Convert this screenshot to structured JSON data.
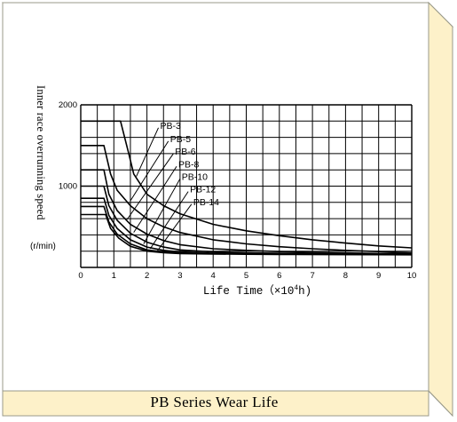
{
  "caption": "PB Series Wear Life",
  "colors": {
    "frame_side": "#fdf1c9",
    "frame_border": "#9a9a8a",
    "caption_bg": "#fdf1c9",
    "grid": "#000000",
    "curve": "#000000"
  },
  "chart_data": {
    "type": "line",
    "title": "",
    "xlabel_prefix": "Life Time（×10",
    "xlabel_exp": "4",
    "xlabel_suffix": "h)",
    "ylabel": "Inner race overrunning speed",
    "yunit": "(r/min)",
    "xlim": [
      0,
      10
    ],
    "ylim": [
      0,
      2000
    ],
    "x_ticks": [
      "0",
      "1",
      "2",
      "3",
      "4",
      "5",
      "6",
      "7",
      "8",
      "9",
      "10"
    ],
    "y_ticks": [
      "1000",
      "2000"
    ],
    "grid": true,
    "series": [
      {
        "name": "PB-3",
        "label_pos": {
          "x": 2.4,
          "y": 1740
        },
        "label_anchor": {
          "x": 1.68,
          "y": 1120
        },
        "points": [
          [
            0,
            1800
          ],
          [
            1.2,
            1800
          ],
          [
            1.45,
            1400
          ],
          [
            1.6,
            1150
          ],
          [
            2,
            900
          ],
          [
            2.5,
            760
          ],
          [
            3,
            660
          ],
          [
            4,
            530
          ],
          [
            5,
            450
          ],
          [
            6,
            390
          ],
          [
            7,
            340
          ],
          [
            8,
            300
          ],
          [
            9,
            265
          ],
          [
            10,
            240
          ]
        ]
      },
      {
        "name": "PB-5",
        "label_pos": {
          "x": 2.7,
          "y": 1575
        },
        "label_anchor": {
          "x": 1.5,
          "y": 820
        },
        "points": [
          [
            0,
            1500
          ],
          [
            0.7,
            1500
          ],
          [
            0.9,
            1150
          ],
          [
            1.1,
            950
          ],
          [
            1.5,
            760
          ],
          [
            2,
            600
          ],
          [
            2.5,
            500
          ],
          [
            3,
            430
          ],
          [
            4,
            340
          ],
          [
            5,
            290
          ],
          [
            6,
            255
          ],
          [
            7,
            230
          ],
          [
            8,
            210
          ],
          [
            9,
            195
          ],
          [
            10,
            180
          ]
        ]
      },
      {
        "name": "PB-6",
        "label_pos": {
          "x": 2.85,
          "y": 1420
        },
        "label_anchor": {
          "x": 1.4,
          "y": 590
        },
        "points": [
          [
            0,
            1200
          ],
          [
            0.7,
            1200
          ],
          [
            0.85,
            900
          ],
          [
            1.1,
            700
          ],
          [
            1.5,
            530
          ],
          [
            2,
            410
          ],
          [
            2.5,
            330
          ],
          [
            3,
            280
          ],
          [
            4,
            230
          ],
          [
            5,
            210
          ],
          [
            6,
            195
          ],
          [
            7,
            185
          ],
          [
            8,
            178
          ],
          [
            9,
            172
          ],
          [
            10,
            170
          ]
        ]
      },
      {
        "name": "PB-8",
        "label_pos": {
          "x": 2.95,
          "y": 1265
        },
        "label_anchor": {
          "x": 1.6,
          "y": 430
        },
        "points": [
          [
            0,
            1000
          ],
          [
            0.7,
            1000
          ],
          [
            0.85,
            760
          ],
          [
            1.1,
            580
          ],
          [
            1.5,
            420
          ],
          [
            2,
            310
          ],
          [
            2.5,
            250
          ],
          [
            3,
            215
          ],
          [
            4,
            190
          ],
          [
            5,
            180
          ],
          [
            6,
            175
          ],
          [
            7,
            170
          ],
          [
            8,
            168
          ],
          [
            9,
            166
          ],
          [
            10,
            165
          ]
        ]
      },
      {
        "name": "PB-10",
        "label_pos": {
          "x": 3.05,
          "y": 1110
        },
        "label_anchor": {
          "x": 1.9,
          "y": 290
        },
        "points": [
          [
            0,
            850
          ],
          [
            0.7,
            850
          ],
          [
            0.85,
            640
          ],
          [
            1.1,
            480
          ],
          [
            1.5,
            340
          ],
          [
            2,
            250
          ],
          [
            2.5,
            210
          ],
          [
            3,
            190
          ],
          [
            4,
            175
          ],
          [
            5,
            170
          ],
          [
            6,
            167
          ],
          [
            7,
            165
          ],
          [
            8,
            163
          ],
          [
            9,
            162
          ],
          [
            10,
            160
          ]
        ]
      },
      {
        "name": "PB-12",
        "label_pos": {
          "x": 3.3,
          "y": 955
        },
        "label_anchor": {
          "x": 2.1,
          "y": 230
        },
        "points": [
          [
            0,
            750
          ],
          [
            0.7,
            750
          ],
          [
            0.85,
            560
          ],
          [
            1.1,
            410
          ],
          [
            1.5,
            290
          ],
          [
            2,
            215
          ],
          [
            2.5,
            190
          ],
          [
            3,
            178
          ],
          [
            4,
            170
          ],
          [
            5,
            166
          ],
          [
            6,
            163
          ],
          [
            7,
            161
          ],
          [
            8,
            160
          ],
          [
            9,
            158
          ],
          [
            10,
            157
          ]
        ]
      },
      {
        "name": "PB-14",
        "label_pos": {
          "x": 3.4,
          "y": 800
        },
        "label_anchor": {
          "x": 2.3,
          "y": 195
        },
        "points": [
          [
            0,
            650
          ],
          [
            0.75,
            650
          ],
          [
            0.9,
            480
          ],
          [
            1.15,
            360
          ],
          [
            1.5,
            260
          ],
          [
            2,
            200
          ],
          [
            2.5,
            180
          ],
          [
            3,
            170
          ],
          [
            4,
            165
          ],
          [
            5,
            162
          ],
          [
            6,
            160
          ],
          [
            7,
            158
          ],
          [
            8,
            157
          ],
          [
            9,
            156
          ],
          [
            10,
            155
          ]
        ]
      }
    ]
  }
}
